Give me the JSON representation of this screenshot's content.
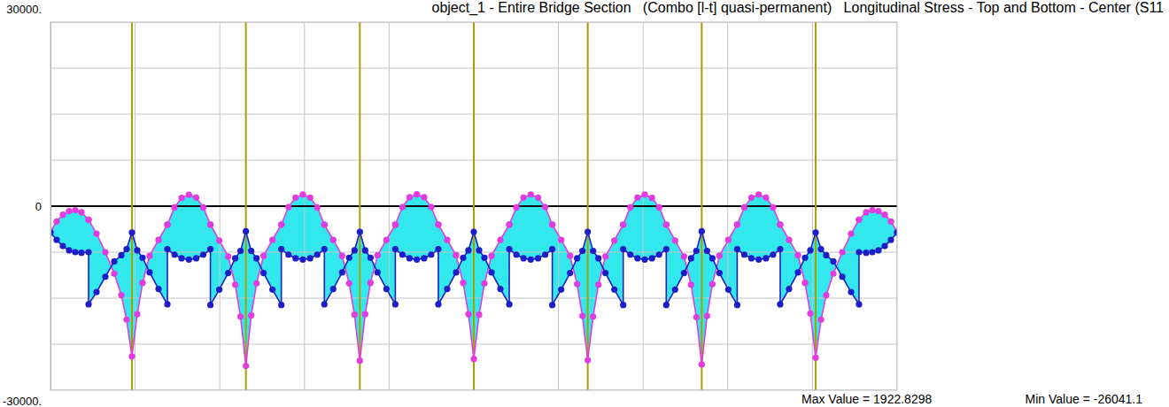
{
  "chart_data": {
    "type": "line",
    "title": "object_1 - Entire Bridge Section   (Combo [l-t] quasi-permanent)   Longitudinal Stress - Top and Bottom - Center (S11",
    "annotations": [
      "Max Value = 1922.8298",
      "Min Value = -26041.1"
    ],
    "color": "#33e8ec",
    "grid": true,
    "tick_labels": "y",
    "xlim": [
      0,
      100
    ],
    "xticks": [
      0,
      10,
      20,
      30,
      40,
      50,
      60,
      70,
      80,
      90,
      100
    ],
    "ylim": [
      -30000,
      30000
    ],
    "yticks": [
      {
        "value": 30000,
        "label": "30000."
      },
      {
        "value": 22500,
        "label": null
      },
      {
        "value": 15000,
        "label": null
      },
      {
        "value": 7500,
        "label": null
      },
      0,
      {
        "value": -7500,
        "label": null
      },
      {
        "value": -15000,
        "label": null
      },
      {
        "value": -22500,
        "label": null
      },
      {
        "value": -30000,
        "label": "-30000."
      }
    ],
    "supports": [
      9.62,
      23.08,
      36.54,
      50,
      63.46,
      76.92,
      90.38
    ],
    "x": [
      0,
      0.73,
      1.46,
      2.2,
      2.93,
      3.66,
      4.5,
      4.5,
      5.44,
      6.48,
      7.53,
      8.37,
      8.99,
      9.62,
      10.25,
      10.88,
      11.71,
      12.76,
      13.81,
      13.81,
      14.65,
      15.49,
      16.35,
      17.21,
      18.05,
      18.89,
      18.89,
      19.94,
      20.99,
      21.82,
      22.45,
      23.08,
      23.71,
      24.34,
      25.17,
      26.22,
      27.27,
      27.27,
      28.11,
      28.95,
      29.81,
      30.67,
      31.51,
      32.35,
      32.35,
      33.4,
      34.45,
      35.28,
      35.91,
      36.54,
      37.17,
      37.8,
      38.63,
      39.68,
      40.73,
      40.73,
      41.57,
      42.41,
      43.27,
      44.13,
      44.97,
      45.81,
      45.81,
      46.86,
      47.91,
      48.74,
      49.37,
      50,
      50.63,
      51.26,
      52.09,
      53.14,
      54.19,
      54.19,
      55.03,
      55.87,
      56.73,
      57.59,
      58.43,
      59.27,
      59.27,
      60.32,
      61.37,
      62.2,
      62.83,
      63.46,
      64.09,
      64.72,
      65.55,
      66.6,
      67.65,
      67.65,
      68.49,
      69.33,
      70.19,
      71.05,
      71.89,
      72.73,
      72.73,
      73.78,
      74.83,
      75.66,
      76.29,
      76.92,
      77.55,
      78.18,
      79.01,
      80.06,
      81.11,
      81.11,
      81.95,
      82.79,
      83.65,
      84.51,
      85.35,
      86.19,
      86.19,
      87.24,
      88.29,
      89.12,
      89.75,
      90.38,
      91.01,
      91.63,
      92.47,
      93.52,
      94.56,
      95.5,
      95.5,
      96.34,
      97.07,
      97.8,
      98.54,
      99.27,
      100
    ],
    "series": [
      {
        "color": "#e03ce0",
        "marker": "circle",
        "values": [
          -4200,
          -2500,
          -1400,
          -800,
          -650,
          -1000,
          -2200,
          -2200,
          -4500,
          -7500,
          -11000,
          -14500,
          -18500,
          -24500,
          -17600,
          -12500,
          -8100,
          -5500,
          -3000,
          -3000,
          -200,
          1350,
          1850,
          1400,
          -200,
          -3000,
          -3000,
          -5600,
          -8200,
          -12800,
          -18000,
          -26041.1,
          -17800,
          -12600,
          -8100,
          -5500,
          -3000,
          -3000,
          -150,
          1400,
          1900,
          1400,
          -200,
          -3000,
          -3000,
          -5500,
          -8100,
          -12600,
          -17700,
          -25200,
          -17600,
          -12500,
          -8000,
          -5500,
          -3000,
          -3000,
          -150,
          1450,
          1922.8298,
          1450,
          -150,
          -3000,
          -3000,
          -5500,
          -8000,
          -12500,
          -17600,
          -24900,
          -17700,
          -12600,
          -8100,
          -5500,
          -3000,
          -3000,
          -200,
          1400,
          1910,
          1400,
          -150,
          -3000,
          -3000,
          -5500,
          -8100,
          -12700,
          -17900,
          -25100,
          -18000,
          -12800,
          -8200,
          -5600,
          -3000,
          -3000,
          -200,
          1400,
          1880,
          1350,
          -200,
          -3000,
          -3000,
          -5600,
          -8200,
          -12800,
          -18100,
          -25800,
          -17900,
          -12700,
          -8100,
          -5500,
          -3000,
          -3000,
          -200,
          1400,
          1900,
          1400,
          -200,
          -3000,
          -3000,
          -5500,
          -8000,
          -12500,
          -17500,
          -24700,
          -18500,
          -14500,
          -11000,
          -7500,
          -4500,
          -2200,
          -2200,
          -1000,
          -650,
          -800,
          -1400,
          -2500,
          -4200
        ]
      },
      {
        "color": "#1e1ec8",
        "marker": "circle",
        "values": [
          -4300,
          -5500,
          -6500,
          -7200,
          -7500,
          -7600,
          -7500,
          -16000,
          -14000,
          -11500,
          -9000,
          -8000,
          -7000,
          -4300,
          -7200,
          -8400,
          -10800,
          -13500,
          -16000,
          -7000,
          -7900,
          -8500,
          -8700,
          -8500,
          -7900,
          -7000,
          -16100,
          -13600,
          -10900,
          -8500,
          -7300,
          -4100,
          -7300,
          -8500,
          -10900,
          -13600,
          -16100,
          -7000,
          -7900,
          -8500,
          -8700,
          -8500,
          -7900,
          -7000,
          -16000,
          -13500,
          -10800,
          -8400,
          -7200,
          -4200,
          -7200,
          -8400,
          -10800,
          -13500,
          -16000,
          -7000,
          -7900,
          -8500,
          -8700,
          -8500,
          -7900,
          -7000,
          -16000,
          -13500,
          -10800,
          -8400,
          -7200,
          -4200,
          -7200,
          -8400,
          -10800,
          -13500,
          -16000,
          -7000,
          -7900,
          -8500,
          -8700,
          -8500,
          -7900,
          -7000,
          -16100,
          -13600,
          -10900,
          -8500,
          -7300,
          -4200,
          -7300,
          -8500,
          -10900,
          -13600,
          -16100,
          -7000,
          -7900,
          -8500,
          -8700,
          -8500,
          -7900,
          -7000,
          -16100,
          -13600,
          -10900,
          -8500,
          -7300,
          -4100,
          -7300,
          -8500,
          -10900,
          -13600,
          -16100,
          -7000,
          -7900,
          -8500,
          -8700,
          -8500,
          -7900,
          -7000,
          -16000,
          -13500,
          -10800,
          -8400,
          -7200,
          -4300,
          -7000,
          -8000,
          -9000,
          -11500,
          -14000,
          -16000,
          -7500,
          -7600,
          -7500,
          -7200,
          -6500,
          -5500,
          -4300
        ]
      }
    ]
  }
}
